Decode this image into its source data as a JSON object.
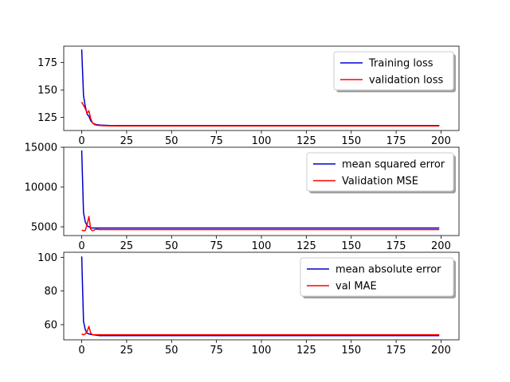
{
  "figure": {
    "background": "#ffffff"
  },
  "chart_data": [
    {
      "type": "line",
      "title": "",
      "xlabel": "",
      "ylabel": "",
      "xlim": [
        -10,
        210
      ],
      "ylim": [
        113,
        190
      ],
      "xticks": [
        0,
        25,
        50,
        75,
        100,
        125,
        150,
        175,
        200
      ],
      "yticks": [
        125,
        150,
        175
      ],
      "legend_position": "top-right",
      "series": [
        {
          "name": "Training loss",
          "color": "#0000cc",
          "points": [
            [
              0,
              187
            ],
            [
              1,
              145
            ],
            [
              2,
              135
            ],
            [
              3,
              128
            ],
            [
              4,
              126
            ],
            [
              5,
              122
            ],
            [
              6,
              120
            ],
            [
              7,
              119
            ],
            [
              8,
              118.5
            ],
            [
              10,
              118
            ],
            [
              15,
              117.6
            ],
            [
              20,
              117.5
            ],
            [
              199,
              117.5
            ]
          ]
        },
        {
          "name": "validation loss",
          "color": "#ff0000",
          "points": [
            [
              0,
              139
            ],
            [
              1,
              136
            ],
            [
              2,
              133
            ],
            [
              3,
              129
            ],
            [
              4,
              131
            ],
            [
              5,
              124
            ],
            [
              6,
              120
            ],
            [
              7,
              118.5
            ],
            [
              8,
              118
            ],
            [
              10,
              117.5
            ],
            [
              15,
              117.3
            ],
            [
              20,
              117.2
            ],
            [
              199,
              117.2
            ]
          ]
        }
      ]
    },
    {
      "type": "line",
      "title": "",
      "xlabel": "",
      "ylabel": "",
      "xlim": [
        -10,
        210
      ],
      "ylim": [
        3900,
        15000
      ],
      "xticks": [
        0,
        25,
        50,
        75,
        100,
        125,
        150,
        175,
        200
      ],
      "yticks": [
        5000,
        10000,
        15000
      ],
      "legend_position": "top-right",
      "series": [
        {
          "name": "mean squared error",
          "color": "#0000cc",
          "points": [
            [
              0,
              14600
            ],
            [
              1,
              6800
            ],
            [
              2,
              5600
            ],
            [
              3,
              5150
            ],
            [
              4,
              5000
            ],
            [
              5,
              4850
            ],
            [
              10,
              4850
            ],
            [
              20,
              4850
            ],
            [
              199,
              4850
            ]
          ]
        },
        {
          "name": "Validation MSE",
          "color": "#ff0000",
          "points": [
            [
              0,
              4600
            ],
            [
              1,
              4500
            ],
            [
              2,
              4550
            ],
            [
              3,
              5300
            ],
            [
              4,
              6300
            ],
            [
              5,
              4700
            ],
            [
              6,
              4500
            ],
            [
              8,
              4700
            ],
            [
              10,
              4650
            ],
            [
              20,
              4650
            ],
            [
              199,
              4650
            ]
          ]
        }
      ]
    },
    {
      "type": "line",
      "title": "",
      "xlabel": "",
      "ylabel": "",
      "xlim": [
        -10,
        210
      ],
      "ylim": [
        51,
        103
      ],
      "xticks": [
        0,
        25,
        50,
        75,
        100,
        125,
        150,
        175,
        200
      ],
      "yticks": [
        60,
        80,
        100
      ],
      "legend_position": "top-right",
      "series": [
        {
          "name": "mean absolute error",
          "color": "#0000cc",
          "points": [
            [
              0,
              100.5
            ],
            [
              1,
              62
            ],
            [
              2,
              57
            ],
            [
              3,
              55
            ],
            [
              4,
              54.5
            ],
            [
              6,
              54
            ],
            [
              10,
              53.5
            ],
            [
              20,
              53.5
            ],
            [
              199,
              53.5
            ]
          ]
        },
        {
          "name": "val MAE",
          "color": "#ff0000",
          "points": [
            [
              0,
              54.5
            ],
            [
              1,
              54
            ],
            [
              2,
              54.5
            ],
            [
              3,
              56
            ],
            [
              4,
              59
            ],
            [
              5,
              55
            ],
            [
              6,
              54
            ],
            [
              8,
              54
            ],
            [
              10,
              54
            ],
            [
              20,
              54
            ],
            [
              199,
              54
            ]
          ]
        }
      ]
    }
  ]
}
